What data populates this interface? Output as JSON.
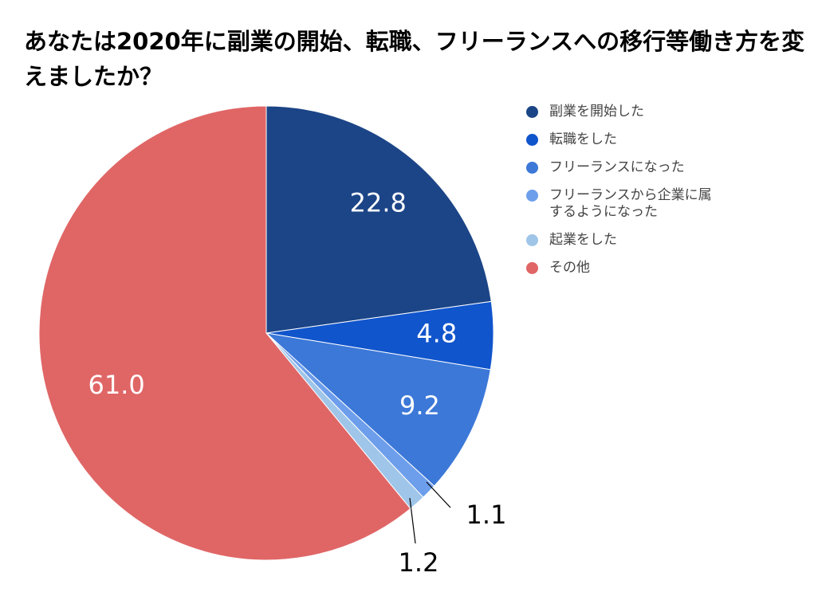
{
  "chart_data": {
    "type": "pie",
    "title": "あなたは2020年に副業の開始、転職、フリーランスへの移行等働き方を変えましたか？",
    "legend_position": "right",
    "slices": [
      {
        "label": "副業を開始した",
        "value": 22.8,
        "display": "22.8",
        "color": "#1c4587"
      },
      {
        "label": "転職をした",
        "value": 4.8,
        "display": "4.8",
        "color": "#1155cc"
      },
      {
        "label": "フリーランスになった",
        "value": 9.2,
        "display": "9.2",
        "color": "#3c78d8"
      },
      {
        "label": "フリーランスから企業に属するようになった",
        "value": 1.1,
        "display": "1.1",
        "color": "#6d9eeb"
      },
      {
        "label": "起業をした",
        "value": 1.2,
        "display": "1.2",
        "color": "#9fc5e8"
      },
      {
        "label": "その他",
        "value": 61.0,
        "display": "61.0",
        "color": "#e06666"
      }
    ]
  }
}
